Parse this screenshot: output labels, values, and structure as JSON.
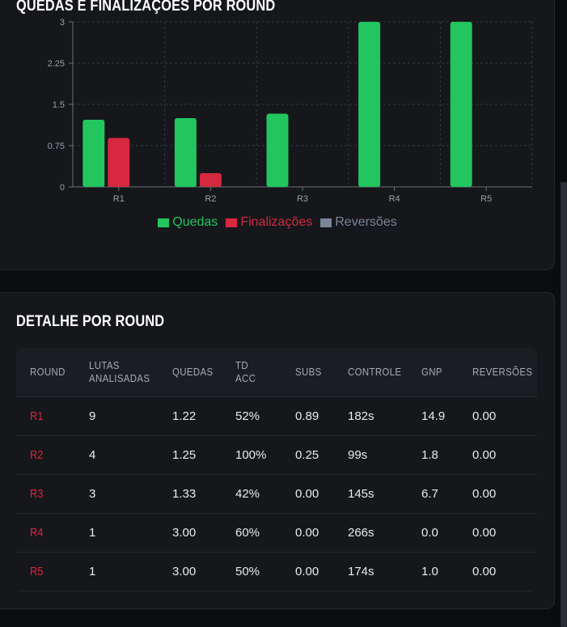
{
  "chart_section": {
    "title": "QUEDAS E FINALIZAÇÕES POR ROUND"
  },
  "table_section": {
    "title": "DETALHE POR ROUND"
  },
  "chart_data": {
    "type": "bar",
    "categories": [
      "R1",
      "R2",
      "R3",
      "R4",
      "R5"
    ],
    "series": [
      {
        "name": "Quedas",
        "color": "#22c55e",
        "values": [
          1.22,
          1.25,
          1.33,
          3.0,
          3.0
        ]
      },
      {
        "name": "Finalizações",
        "color": "#d6283e",
        "values": [
          0.89,
          0.25,
          0,
          0,
          0
        ]
      },
      {
        "name": "Reversões",
        "color": "#7a8596",
        "values": [
          0,
          0,
          0,
          0,
          0
        ]
      }
    ],
    "yticks": [
      "0",
      "0.75",
      "1.5",
      "2.25",
      "3"
    ],
    "ylim": [
      0,
      3
    ],
    "grid": true,
    "legend_position": "bottom"
  },
  "table": {
    "headers": [
      "ROUND",
      "LUTAS ANALISADAS",
      "QUEDAS",
      "TD ACC",
      "SUBS",
      "CONTROLE",
      "GNP",
      "REVERSÕES"
    ],
    "rows": [
      [
        "R1",
        "9",
        "1.22",
        "52%",
        "0.89",
        "182s",
        "14.9",
        "0.00"
      ],
      [
        "R2",
        "4",
        "1.25",
        "100%",
        "0.25",
        "99s",
        "1.8",
        "0.00"
      ],
      [
        "R3",
        "3",
        "1.33",
        "42%",
        "0.00",
        "145s",
        "6.7",
        "0.00"
      ],
      [
        "R4",
        "1",
        "3.00",
        "60%",
        "0.00",
        "266s",
        "0.0",
        "0.00"
      ],
      [
        "R5",
        "1",
        "3.00",
        "50%",
        "0.00",
        "174s",
        "1.0",
        "0.00"
      ]
    ]
  }
}
